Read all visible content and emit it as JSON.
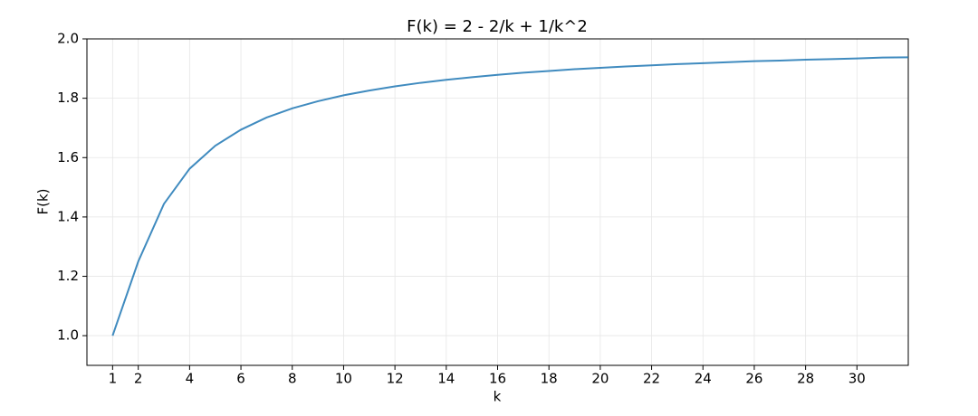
{
  "chart_data": {
    "type": "line",
    "title": "F(k) = 2 - 2/k + 1/k^2",
    "x_label": "k",
    "y_label": "F(k)",
    "x": [
      1,
      2,
      3,
      4,
      5,
      6,
      7,
      8,
      9,
      10,
      11,
      12,
      13,
      14,
      15,
      16,
      17,
      18,
      19,
      20,
      21,
      22,
      23,
      24,
      25,
      26,
      27,
      28,
      29,
      30,
      31,
      32
    ],
    "series": [
      {
        "name": "F(k)",
        "color": "#1f77b4",
        "values": [
          1.0,
          1.25,
          1.444,
          1.5625,
          1.64,
          1.694,
          1.735,
          1.766,
          1.79,
          1.81,
          1.826,
          1.84,
          1.852,
          1.862,
          1.871,
          1.879,
          1.886,
          1.892,
          1.898,
          1.9025,
          1.907,
          1.911,
          1.915,
          1.918,
          1.9216,
          1.925,
          1.927,
          1.93,
          1.932,
          1.934,
          1.937,
          1.938
        ]
      }
    ],
    "xlim": [
      0,
      32
    ],
    "ylim": [
      0.9,
      2.0
    ],
    "xticks": [
      1,
      2,
      4,
      6,
      8,
      10,
      12,
      14,
      16,
      18,
      20,
      22,
      24,
      26,
      28,
      30
    ],
    "yticks": [
      {
        "value": 1.0,
        "label": "1.0"
      },
      {
        "value": 1.2,
        "label": "1.2"
      },
      {
        "value": 1.4,
        "label": "1.4"
      },
      {
        "value": 1.6,
        "label": "1.6"
      },
      {
        "value": 1.8,
        "label": "1.8"
      },
      {
        "value": 2.0,
        "label": "2.0"
      }
    ],
    "grid": true
  }
}
